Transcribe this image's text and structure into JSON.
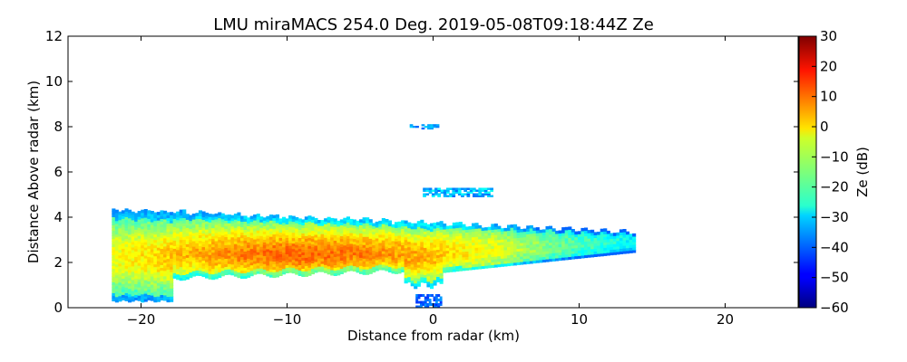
{
  "chart_data": {
    "type": "heatmap",
    "title": "LMU miraMACS 254.0 Deg. 2019-05-08T09:18:44Z  Ze",
    "xlabel": "Distance from radar (km)",
    "ylabel": "Distance Above radar  (km)",
    "xlim": [
      -25,
      25
    ],
    "ylim": [
      0,
      12
    ],
    "xticks": [
      -20,
      -10,
      0,
      10,
      20
    ],
    "xtick_labels": [
      "−20",
      "−10",
      "0",
      "10",
      "20"
    ],
    "yticks": [
      0,
      2,
      4,
      6,
      8,
      10,
      12
    ],
    "ytick_labels": [
      "0",
      "2",
      "4",
      "6",
      "8",
      "10",
      "12"
    ],
    "colorbar": {
      "label": "Ze (dB)",
      "range": [
        -60,
        30
      ],
      "ticks": [
        30,
        20,
        10,
        0,
        -10,
        -20,
        -30,
        -40,
        -50,
        -60
      ],
      "tick_labels": [
        "30",
        "20",
        "10",
        "0",
        "−10",
        "−20",
        "−30",
        "−40",
        "−50",
        "−60"
      ],
      "colormap": "jet"
    },
    "echo_regions": [
      {
        "name": "main-cloud-layer",
        "x_range_km": [
          -22,
          13.7
        ],
        "base_km_at_left": 0.3,
        "top_km_at_left": 4.3,
        "top_km_at_right": 3.3,
        "ze_range_dB": [
          -35,
          10
        ],
        "max_ze_dB": 10,
        "max_at_km": [
          -9,
          2.2
        ]
      },
      {
        "name": "upper-echo-patch",
        "x_range_km": [
          -0.7,
          4.1
        ],
        "height_km": [
          4.9,
          5.3
        ],
        "ze_range_dB": [
          -40,
          -25
        ]
      },
      {
        "name": "high-echo-fragment",
        "x_range_km": [
          -1.6,
          0.2
        ],
        "height_km": [
          7.9,
          8.1
        ],
        "ze_range_dB": [
          -40,
          -30
        ]
      },
      {
        "name": "near-surface-clutter",
        "x_range_km": [
          -1.2,
          0.5
        ],
        "height_km": [
          0.0,
          0.6
        ],
        "ze_range_dB": [
          -45,
          -35
        ]
      }
    ]
  }
}
